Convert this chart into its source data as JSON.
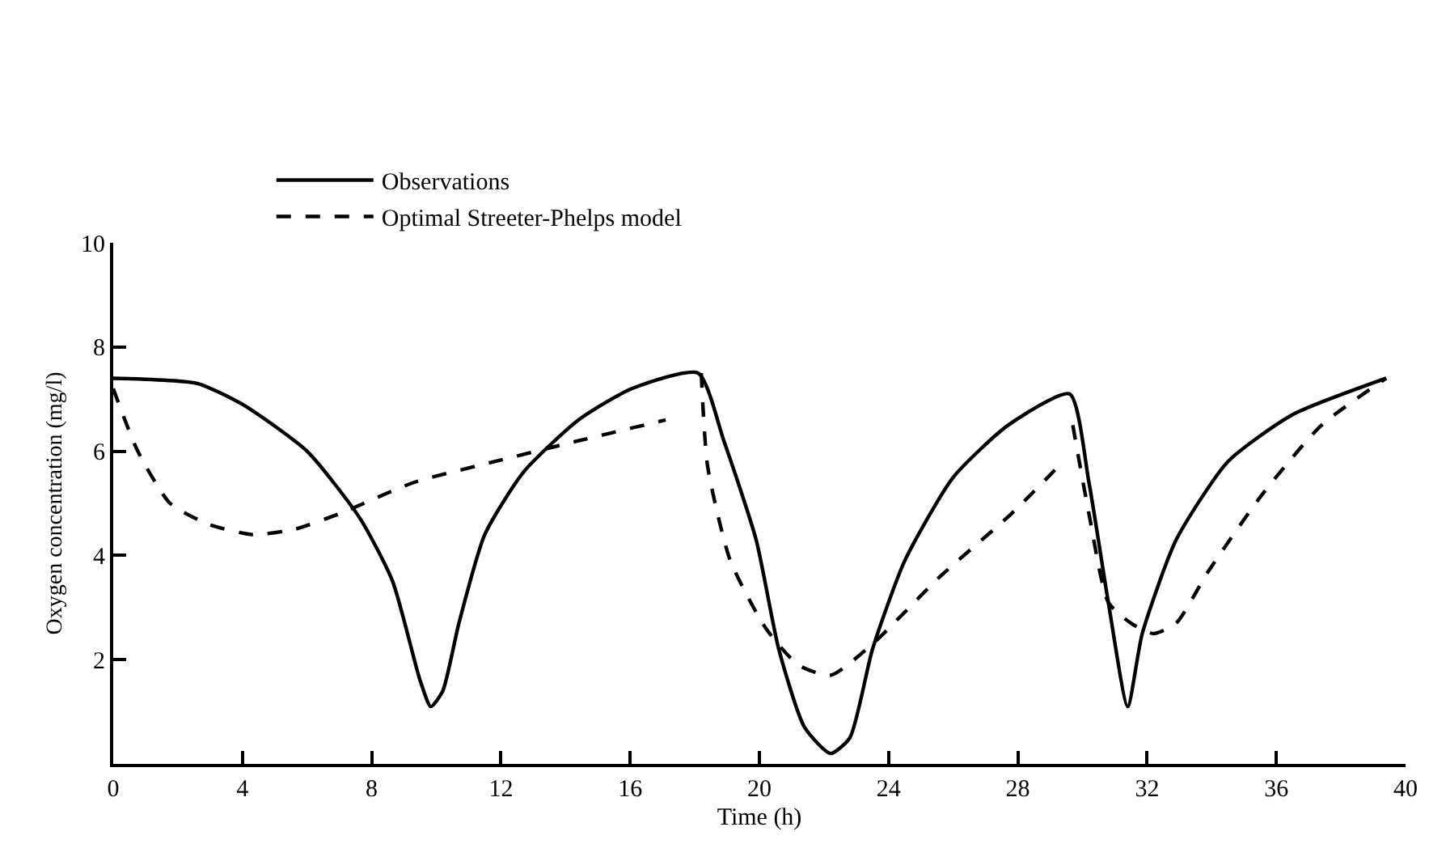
{
  "chart_data": {
    "type": "line",
    "xlabel": "Time (h)",
    "ylabel": "Oxygen concentration (mg/l)",
    "xlim": [
      0,
      40
    ],
    "xticks": [
      0,
      4,
      8,
      12,
      16,
      20,
      24,
      28,
      32,
      36,
      40
    ],
    "ylim": [
      0,
      10
    ],
    "yticks": [
      2,
      4,
      6,
      8,
      10
    ],
    "grid": false,
    "legend": "top left",
    "marker": "none",
    "series": [
      {
        "name": "Observations",
        "color": "#000000",
        "line_style": "solid",
        "x": [
          0,
          2.6,
          4,
          6,
          7.65,
          8.65,
          9.5,
          9.83,
          10.2,
          10.7,
          11.5,
          12.7,
          14.4,
          16.05,
          18.1,
          18.9,
          19.9,
          20.6,
          21.4,
          22.2,
          22.8,
          23.5,
          24.5,
          26,
          27.7,
          29.6,
          30.2,
          30.8,
          31.4,
          31.85,
          32.9,
          34.5,
          36.5,
          39.4
        ],
        "values": [
          7.4,
          7.3,
          6.9,
          6.0,
          4.7,
          3.5,
          1.6,
          1.1,
          1.4,
          2.7,
          4.4,
          5.6,
          6.6,
          7.2,
          7.5,
          6.2,
          4.3,
          2.2,
          0.7,
          0.2,
          0.5,
          2.2,
          3.9,
          5.5,
          6.5,
          7.1,
          5.4,
          3.1,
          1.1,
          2.5,
          4.3,
          5.8,
          6.7,
          7.4
        ]
      },
      {
        "name": "Optimal Streeter-Phelps model",
        "color": "#000000",
        "line_style": "dashed",
        "x": [
          0,
          0.76,
          1.76,
          2.94,
          4.3,
          5.6,
          7,
          9.3,
          11.8,
          14.4,
          17.1,
          17.6,
          18.2,
          18.4,
          19.1,
          20.2,
          21.2,
          22.2,
          23.5,
          25.6,
          27.8,
          29.4,
          29.55,
          29.7,
          30.2,
          30.8,
          31.5,
          32.2,
          32.9,
          33.9,
          35.6,
          37.4,
          39.4
        ],
        "values": [
          7.2,
          6.0,
          5.0,
          4.6,
          4.4,
          4.5,
          4.8,
          5.4,
          5.8,
          6.2,
          6.6,
          null,
          7.5,
          5.7,
          3.9,
          2.6,
          1.9,
          1.7,
          2.3,
          3.6,
          4.8,
          5.8,
          null,
          6.5,
          4.8,
          3.1,
          2.7,
          2.5,
          2.7,
          3.7,
          5.2,
          6.5,
          7.4
        ]
      }
    ]
  }
}
